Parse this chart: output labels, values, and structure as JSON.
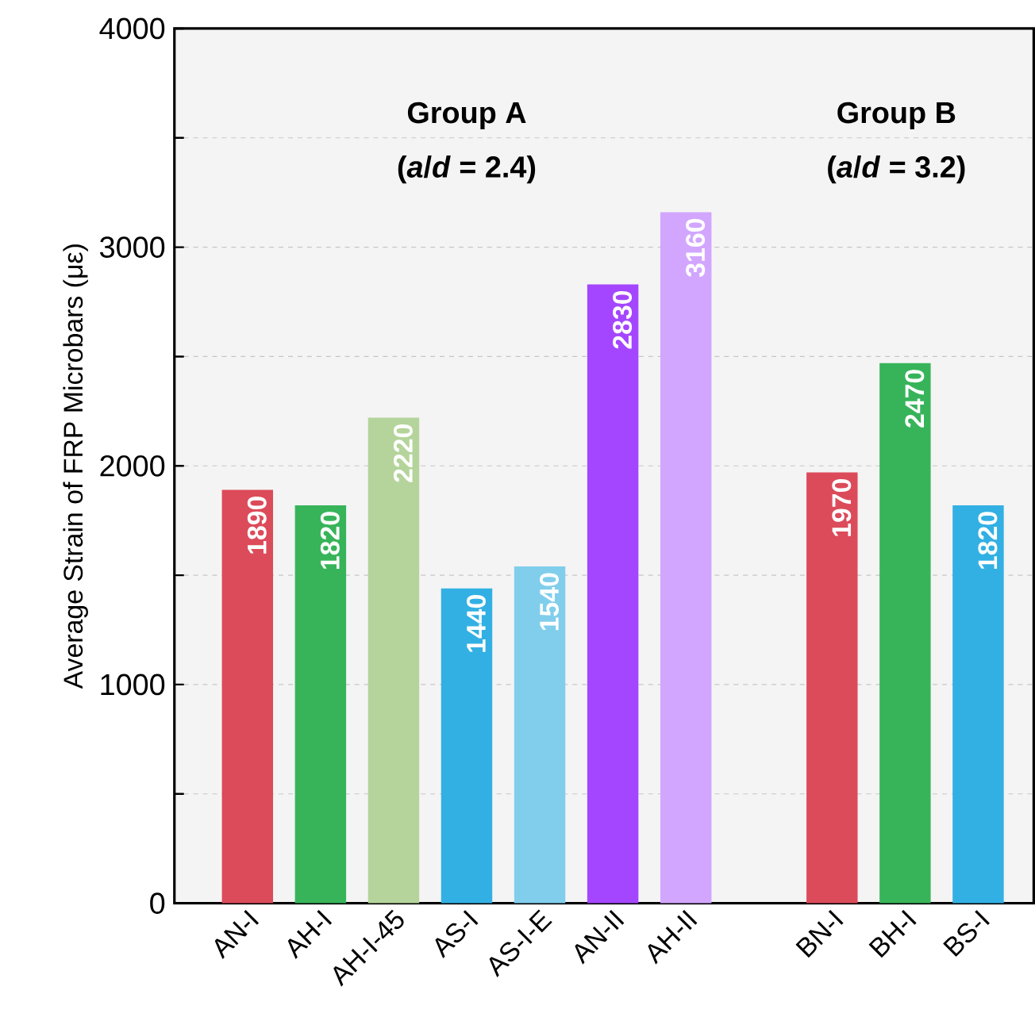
{
  "chart_data": {
    "type": "bar",
    "ylabel": "Average Strain of FRP Microbars (με)",
    "categories": [
      "AN-I",
      "AH-I",
      "AH-I-45",
      "AS-I",
      "AS-I-E",
      "AN-II",
      "AH-II",
      null,
      "BN-I",
      "BH-I",
      "BS-I"
    ],
    "values": [
      1890,
      1820,
      2220,
      1440,
      1540,
      2830,
      3160,
      null,
      1970,
      2470,
      1820
    ],
    "colors": [
      "#dc4b5a",
      "#37b45a",
      "#b4d49b",
      "#32b0e3",
      "#80ceec",
      "#a446ff",
      "#d2a6ff",
      "#ffffff",
      "#dc4b5a",
      "#37b45a",
      "#32b0e3"
    ],
    "data_labels": true,
    "ylim": [
      0,
      4000
    ],
    "yticks": [
      0,
      {
        "value": 500,
        "label": null
      },
      1000,
      {
        "value": 1500,
        "label": null
      },
      2000,
      {
        "value": 2500,
        "label": null
      },
      3000,
      {
        "value": 3500,
        "label": null
      },
      4000
    ],
    "grid": "y",
    "annotations": [
      "Group A",
      "(*a*/*d* = 2.4)",
      "Group B",
      "(*a*/*d* = 3.2)"
    ]
  }
}
